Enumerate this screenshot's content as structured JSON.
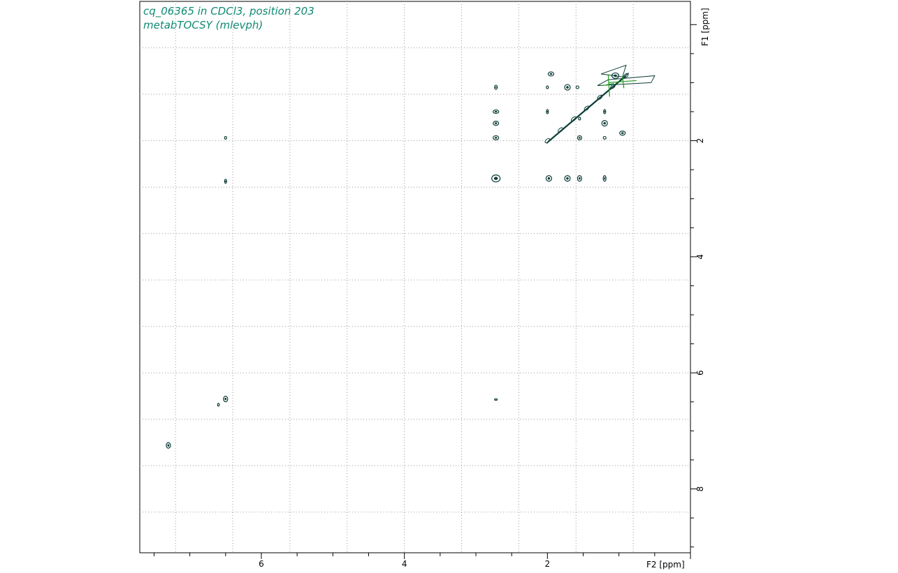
{
  "header": {
    "title_line1": "cq_06365 in CDCl3, position 203",
    "title_line2": "metabTOCSY (mlevph)"
  },
  "colors": {
    "contour_positive": "#0d3d38",
    "contour_negative": "#1a9c1a",
    "title": "#0f8a73",
    "grid": "#9a9a9a"
  },
  "chart_data": {
    "type": "contour",
    "xlabel": "F2 [ppm]",
    "ylabel": "F1 [ppm]",
    "xlim": [
      7.7,
      0.0
    ],
    "ylim": [
      -0.4,
      9.1
    ],
    "x_axis_reversed": true,
    "grid": true,
    "x_ticks": [
      6,
      4,
      2
    ],
    "y_ticks": [
      2,
      4,
      6,
      8
    ],
    "diagonal": {
      "from": 2.0,
      "to": 1.0
    },
    "peaks": [
      {
        "x": 1.05,
        "y": 0.88,
        "w": 5,
        "h": 4,
        "kind": "pos"
      },
      {
        "x": 1.95,
        "y": 0.85,
        "w": 4,
        "h": 3,
        "kind": "pos"
      },
      {
        "x": 1.72,
        "y": 1.08,
        "w": 4,
        "h": 4,
        "kind": "pos"
      },
      {
        "x": 1.58,
        "y": 1.08,
        "w": 2,
        "h": 2,
        "kind": "pos"
      },
      {
        "x": 2.0,
        "y": 1.08,
        "w": 1.5,
        "h": 2,
        "kind": "pos"
      },
      {
        "x": 2.72,
        "y": 1.08,
        "w": 2,
        "h": 3,
        "kind": "pos"
      },
      {
        "x": 2.72,
        "y": 1.5,
        "w": 4,
        "h": 2.5,
        "kind": "pos"
      },
      {
        "x": 2.72,
        "y": 1.7,
        "w": 4,
        "h": 3,
        "kind": "pos"
      },
      {
        "x": 2.72,
        "y": 1.95,
        "w": 4,
        "h": 3,
        "kind": "pos"
      },
      {
        "x": 2.72,
        "y": 2.65,
        "w": 6,
        "h": 5,
        "kind": "pos"
      },
      {
        "x": 2.0,
        "y": 1.5,
        "w": 1.5,
        "h": 3,
        "kind": "pos"
      },
      {
        "x": 1.55,
        "y": 1.62,
        "w": 1.5,
        "h": 2,
        "kind": "pos"
      },
      {
        "x": 1.2,
        "y": 1.5,
        "w": 1.5,
        "h": 3,
        "kind": "pos"
      },
      {
        "x": 1.2,
        "y": 1.7,
        "w": 4,
        "h": 4,
        "kind": "pos"
      },
      {
        "x": 1.55,
        "y": 1.95,
        "w": 3,
        "h": 3,
        "kind": "pos"
      },
      {
        "x": 1.2,
        "y": 1.95,
        "w": 2,
        "h": 2,
        "kind": "pos"
      },
      {
        "x": 0.95,
        "y": 1.87,
        "w": 4,
        "h": 3,
        "kind": "pos"
      },
      {
        "x": 1.98,
        "y": 2.65,
        "w": 4,
        "h": 4,
        "kind": "pos"
      },
      {
        "x": 1.72,
        "y": 2.65,
        "w": 4,
        "h": 4,
        "kind": "pos"
      },
      {
        "x": 1.55,
        "y": 2.65,
        "w": 3,
        "h": 4,
        "kind": "pos"
      },
      {
        "x": 1.2,
        "y": 2.65,
        "w": 2,
        "h": 4,
        "kind": "pos"
      },
      {
        "x": 6.5,
        "y": 1.95,
        "w": 1.5,
        "h": 2,
        "kind": "pos"
      },
      {
        "x": 6.5,
        "y": 2.7,
        "w": 1.5,
        "h": 3,
        "kind": "pos"
      },
      {
        "x": 6.5,
        "y": 6.45,
        "w": 3,
        "h": 4,
        "kind": "pos"
      },
      {
        "x": 6.6,
        "y": 6.55,
        "w": 1.2,
        "h": 2,
        "kind": "pos"
      },
      {
        "x": 7.3,
        "y": 7.25,
        "w": 3,
        "h": 4,
        "kind": "pos"
      },
      {
        "x": 2.72,
        "y": 6.46,
        "w": 2,
        "h": 1,
        "kind": "pos"
      },
      {
        "x": 0.95,
        "y": 1.0,
        "w": 5,
        "h": 2,
        "kind": "neg"
      },
      {
        "x": 1.15,
        "y": 1.05,
        "w": 2,
        "h": 4,
        "kind": "neg"
      }
    ]
  }
}
